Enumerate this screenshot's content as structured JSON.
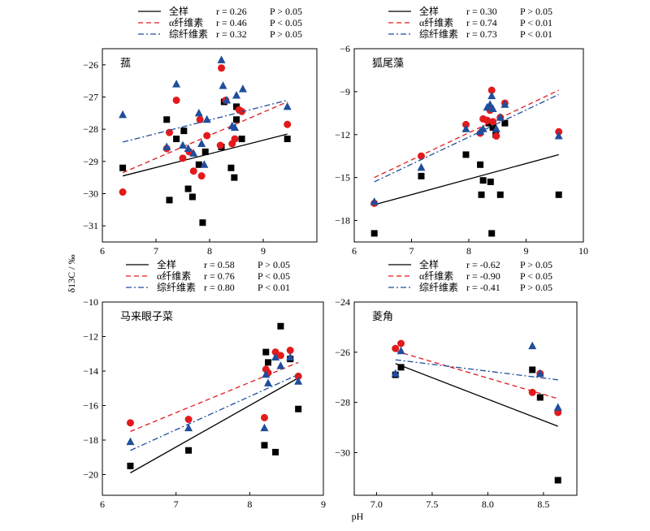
{
  "figure": {
    "xlabel": "pH",
    "ylabel": "δ13C / ‰"
  },
  "colors": {
    "all": "#000000",
    "alpha": "#e31a1c",
    "fiber": "#1f4e9c"
  },
  "chart_data": [
    {
      "type": "scatter",
      "title": "菰",
      "xlim": [
        6,
        10
      ],
      "ylim": [
        -31.5,
        -25.5
      ],
      "xticks": [
        6,
        7,
        8,
        9
      ],
      "yticks": [
        -31,
        -30,
        -29,
        -28,
        -27,
        -26
      ],
      "legend": [
        {
          "name": "全样",
          "r": "r = 0.26",
          "p": "P > 0.05"
        },
        {
          "name": "α纤维素",
          "r": "r = 0.46",
          "p": "P < 0.05"
        },
        {
          "name": "综纤维素",
          "r": "r = 0.32",
          "p": "P > 0.05"
        }
      ],
      "series": [
        {
          "name": "全样",
          "marker": "square",
          "points": [
            [
              6.38,
              -29.2
            ],
            [
              7.2,
              -27.7
            ],
            [
              7.25,
              -30.2
            ],
            [
              7.38,
              -28.3
            ],
            [
              7.52,
              -28.05
            ],
            [
              7.6,
              -29.85
            ],
            [
              7.68,
              -30.1
            ],
            [
              7.8,
              -29.1
            ],
            [
              7.87,
              -30.9
            ],
            [
              7.92,
              -28.7
            ],
            [
              8.22,
              -28.55
            ],
            [
              8.27,
              -27.15
            ],
            [
              8.4,
              -29.2
            ],
            [
              8.46,
              -29.5
            ],
            [
              8.5,
              -27.3
            ],
            [
              8.5,
              -27.7
            ],
            [
              8.6,
              -28.3
            ],
            [
              9.45,
              -28.3
            ]
          ],
          "fit": [
            [
              6.38,
              -29.45
            ],
            [
              9.45,
              -28.15
            ]
          ]
        },
        {
          "name": "α纤维素",
          "marker": "circle",
          "points": [
            [
              6.38,
              -29.95
            ],
            [
              7.2,
              -28.6
            ],
            [
              7.25,
              -28.1
            ],
            [
              7.38,
              -27.1
            ],
            [
              7.5,
              -28.9
            ],
            [
              7.62,
              -28.7
            ],
            [
              7.7,
              -29.3
            ],
            [
              7.82,
              -27.7
            ],
            [
              7.85,
              -29.45
            ],
            [
              7.95,
              -28.2
            ],
            [
              8.2,
              -28.5
            ],
            [
              8.22,
              -26.1
            ],
            [
              8.3,
              -27.1
            ],
            [
              8.42,
              -28.45
            ],
            [
              8.47,
              -28.3
            ],
            [
              8.55,
              -27.4
            ],
            [
              8.6,
              -27.45
            ],
            [
              9.45,
              -27.85
            ]
          ],
          "fit": [
            [
              6.38,
              -29.35
            ],
            [
              9.45,
              -27.15
            ]
          ]
        },
        {
          "name": "综纤维素",
          "marker": "triangle",
          "points": [
            [
              6.38,
              -27.55
            ],
            [
              7.2,
              -28.55
            ],
            [
              7.38,
              -26.6
            ],
            [
              7.5,
              -28.5
            ],
            [
              7.6,
              -28.6
            ],
            [
              7.7,
              -28.75
            ],
            [
              7.8,
              -27.5
            ],
            [
              7.85,
              -28.45
            ],
            [
              7.9,
              -29.1
            ],
            [
              7.95,
              -27.7
            ],
            [
              8.22,
              -25.85
            ],
            [
              8.25,
              -26.65
            ],
            [
              8.32,
              -27.1
            ],
            [
              8.42,
              -27.9
            ],
            [
              8.47,
              -27.95
            ],
            [
              8.5,
              -26.95
            ],
            [
              8.62,
              -26.75
            ],
            [
              9.45,
              -27.3
            ]
          ],
          "fit": [
            [
              6.38,
              -28.4
            ],
            [
              9.45,
              -27.1
            ]
          ]
        }
      ]
    },
    {
      "type": "scatter",
      "title": "狐尾藻",
      "xlim": [
        6,
        10
      ],
      "ylim": [
        -19.5,
        -6
      ],
      "xticks": [
        6,
        7,
        8,
        9,
        10
      ],
      "yticks": [
        -18,
        -15,
        -12,
        -9,
        -6
      ],
      "legend": [
        {
          "name": "全样",
          "r": "r = 0.30",
          "p": "P > 0.05"
        },
        {
          "name": "α纤维素",
          "r": "r = 0.74",
          "p": "P < 0.01"
        },
        {
          "name": "综纤维素",
          "r": "r = 0.73",
          "p": "P < 0.01"
        }
      ],
      "series": [
        {
          "name": "全样",
          "marker": "square",
          "points": [
            [
              6.35,
              -18.9
            ],
            [
              7.17,
              -14.9
            ],
            [
              7.95,
              -13.4
            ],
            [
              8.2,
              -14.1
            ],
            [
              8.22,
              -16.2
            ],
            [
              8.25,
              -15.2
            ],
            [
              8.35,
              -11.2
            ],
            [
              8.38,
              -15.3
            ],
            [
              8.4,
              -18.9
            ],
            [
              8.42,
              -11.5
            ],
            [
              8.47,
              -12.0
            ],
            [
              8.55,
              -16.2
            ],
            [
              8.63,
              -11.2
            ],
            [
              9.57,
              -16.2
            ]
          ],
          "fit": [
            [
              6.35,
              -16.9
            ],
            [
              9.57,
              -13.4
            ]
          ]
        },
        {
          "name": "α纤维素",
          "marker": "circle",
          "points": [
            [
              6.35,
              -16.8
            ],
            [
              7.17,
              -13.5
            ],
            [
              7.95,
              -11.3
            ],
            [
              8.2,
              -11.9
            ],
            [
              8.25,
              -10.9
            ],
            [
              8.32,
              -11.0
            ],
            [
              8.37,
              -10.3
            ],
            [
              8.4,
              -8.9
            ],
            [
              8.42,
              -11.1
            ],
            [
              8.48,
              -12.1
            ],
            [
              8.55,
              -10.8
            ],
            [
              8.63,
              -9.8
            ],
            [
              9.57,
              -11.8
            ]
          ],
          "fit": [
            [
              6.35,
              -15.0
            ],
            [
              9.57,
              -8.9
            ]
          ]
        },
        {
          "name": "综纤维素",
          "marker": "triangle",
          "points": [
            [
              6.35,
              -16.7
            ],
            [
              7.17,
              -14.3
            ],
            [
              7.95,
              -11.6
            ],
            [
              8.2,
              -11.8
            ],
            [
              8.25,
              -11.6
            ],
            [
              8.32,
              -10.1
            ],
            [
              8.37,
              -9.9
            ],
            [
              8.4,
              -9.3
            ],
            [
              8.42,
              -10.2
            ],
            [
              8.48,
              -11.6
            ],
            [
              8.55,
              -10.8
            ],
            [
              8.63,
              -9.9
            ],
            [
              9.57,
              -12.1
            ]
          ],
          "fit": [
            [
              6.35,
              -15.3
            ],
            [
              9.57,
              -9.2
            ]
          ]
        }
      ]
    },
    {
      "type": "scatter",
      "title": "马来眼子菜",
      "xlim": [
        6,
        9
      ],
      "ylim": [
        -21.2,
        -10
      ],
      "xticks": [
        6,
        7,
        8,
        9
      ],
      "yticks": [
        -20,
        -18,
        -16,
        -14,
        -12,
        -10
      ],
      "legend": [
        {
          "name": "全样",
          "r": "r = 0.58",
          "p": "P > 0.05"
        },
        {
          "name": "α纤维素",
          "r": "r = 0.76",
          "p": "P < 0.05"
        },
        {
          "name": "综纤维素",
          "r": "r = 0.80",
          "p": "P < 0.01"
        }
      ],
      "series": [
        {
          "name": "全样",
          "marker": "square",
          "points": [
            [
              6.38,
              -19.5
            ],
            [
              7.17,
              -18.6
            ],
            [
              8.2,
              -18.3
            ],
            [
              8.22,
              -12.9
            ],
            [
              8.25,
              -13.5
            ],
            [
              8.35,
              -18.7
            ],
            [
              8.42,
              -11.4
            ],
            [
              8.55,
              -13.3
            ],
            [
              8.66,
              -16.2
            ]
          ],
          "fit": [
            [
              6.38,
              -19.9
            ],
            [
              8.66,
              -14.4
            ]
          ]
        },
        {
          "name": "α纤维素",
          "marker": "circle",
          "points": [
            [
              6.38,
              -17.0
            ],
            [
              7.17,
              -16.8
            ],
            [
              8.2,
              -16.7
            ],
            [
              8.22,
              -13.9
            ],
            [
              8.25,
              -14.1
            ],
            [
              8.35,
              -12.9
            ],
            [
              8.42,
              -13.1
            ],
            [
              8.55,
              -12.8
            ],
            [
              8.66,
              -14.3
            ]
          ],
          "fit": [
            [
              6.38,
              -17.5
            ],
            [
              8.66,
              -13.5
            ]
          ]
        },
        {
          "name": "综纤维素",
          "marker": "triangle",
          "points": [
            [
              6.38,
              -18.1
            ],
            [
              7.17,
              -17.3
            ],
            [
              8.2,
              -17.3
            ],
            [
              8.22,
              -14.2
            ],
            [
              8.25,
              -14.7
            ],
            [
              8.35,
              -13.2
            ],
            [
              8.42,
              -13.7
            ],
            [
              8.55,
              -13.2
            ],
            [
              8.66,
              -14.6
            ]
          ],
          "fit": [
            [
              6.38,
              -18.6
            ],
            [
              8.66,
              -14.2
            ]
          ]
        }
      ]
    },
    {
      "type": "scatter",
      "title": "菱角",
      "xlim": [
        6.8,
        8.8
      ],
      "ylim": [
        -31.7,
        -24
      ],
      "xticks": [
        7.0,
        7.5,
        8.0,
        8.5
      ],
      "yticks": [
        -30,
        -28,
        -26,
        -24
      ],
      "legend": [
        {
          "name": "全样",
          "r": "r = -0.62",
          "p": "P > 0.05"
        },
        {
          "name": "α纤维素",
          "r": "r = -0.90",
          "p": "P < 0.05"
        },
        {
          "name": "综纤维素",
          "r": "r = -0.41",
          "p": "P > 0.05"
        }
      ],
      "series": [
        {
          "name": "全样",
          "marker": "square",
          "points": [
            [
              7.17,
              -26.9
            ],
            [
              7.22,
              -26.6
            ],
            [
              8.4,
              -26.7
            ],
            [
              8.47,
              -27.8
            ],
            [
              8.63,
              -31.1
            ]
          ],
          "fit": [
            [
              7.17,
              -26.45
            ],
            [
              8.63,
              -28.95
            ]
          ]
        },
        {
          "name": "α纤维素",
          "marker": "circle",
          "points": [
            [
              7.17,
              -25.85
            ],
            [
              7.22,
              -25.65
            ],
            [
              8.4,
              -27.6
            ],
            [
              8.47,
              -26.85
            ],
            [
              8.63,
              -28.4
            ]
          ],
          "fit": [
            [
              7.17,
              -25.95
            ],
            [
              8.63,
              -27.85
            ]
          ]
        },
        {
          "name": "综纤维素",
          "marker": "triangle",
          "points": [
            [
              7.17,
              -26.85
            ],
            [
              7.22,
              -25.95
            ],
            [
              8.4,
              -25.75
            ],
            [
              8.47,
              -26.85
            ],
            [
              8.63,
              -28.2
            ]
          ],
          "fit": [
            [
              7.17,
              -26.3
            ],
            [
              8.63,
              -27.1
            ]
          ]
        }
      ]
    }
  ]
}
